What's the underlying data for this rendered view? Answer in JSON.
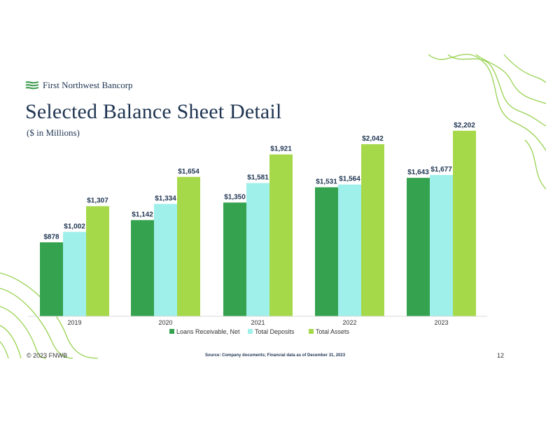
{
  "brand": {
    "name": "First Northwest Bancorp"
  },
  "header": {
    "title": "Selected Balance Sheet Detail",
    "subtitle": "($ in Millions)"
  },
  "footer": {
    "copyright": "© 2023 FNWB",
    "source": "Source: Company documents; Financial data as of December 31, 2023",
    "page_number": "12"
  },
  "colors": {
    "loans": "#34a24f",
    "deposits": "#9ff0ea",
    "assets": "#a6d94a",
    "contour": "#8ccd3e",
    "text": "#1f3552"
  },
  "icons": {
    "logo": "wave-logo-icon"
  },
  "chart_data": {
    "type": "bar",
    "title": "Selected Balance Sheet Detail",
    "ylabel": "($ in Millions)",
    "xlabel": "",
    "categories": [
      "2019",
      "2020",
      "2021",
      "2022",
      "2023"
    ],
    "ylim": [
      0,
      2300
    ],
    "grid": false,
    "legend_position": "bottom",
    "series": [
      {
        "name": "Loans Receivable, Net",
        "color": "#34a24f",
        "values": [
          878,
          1142,
          1350,
          1531,
          1643
        ],
        "labels": [
          "$878",
          "$1,142",
          "$1,350",
          "$1,531",
          "$1,643"
        ]
      },
      {
        "name": "Total Deposits",
        "color": "#9ff0ea",
        "values": [
          1002,
          1334,
          1581,
          1564,
          1677
        ],
        "labels": [
          "$1,002",
          "$1,334",
          "$1,581",
          "$1,564",
          "$1,677"
        ]
      },
      {
        "name": "Total Assets",
        "color": "#a6d94a",
        "values": [
          1307,
          1654,
          1921,
          2042,
          2202
        ],
        "labels": [
          "$1,307",
          "$1,654",
          "$1,921",
          "$2,042",
          "$2,202"
        ]
      }
    ]
  }
}
